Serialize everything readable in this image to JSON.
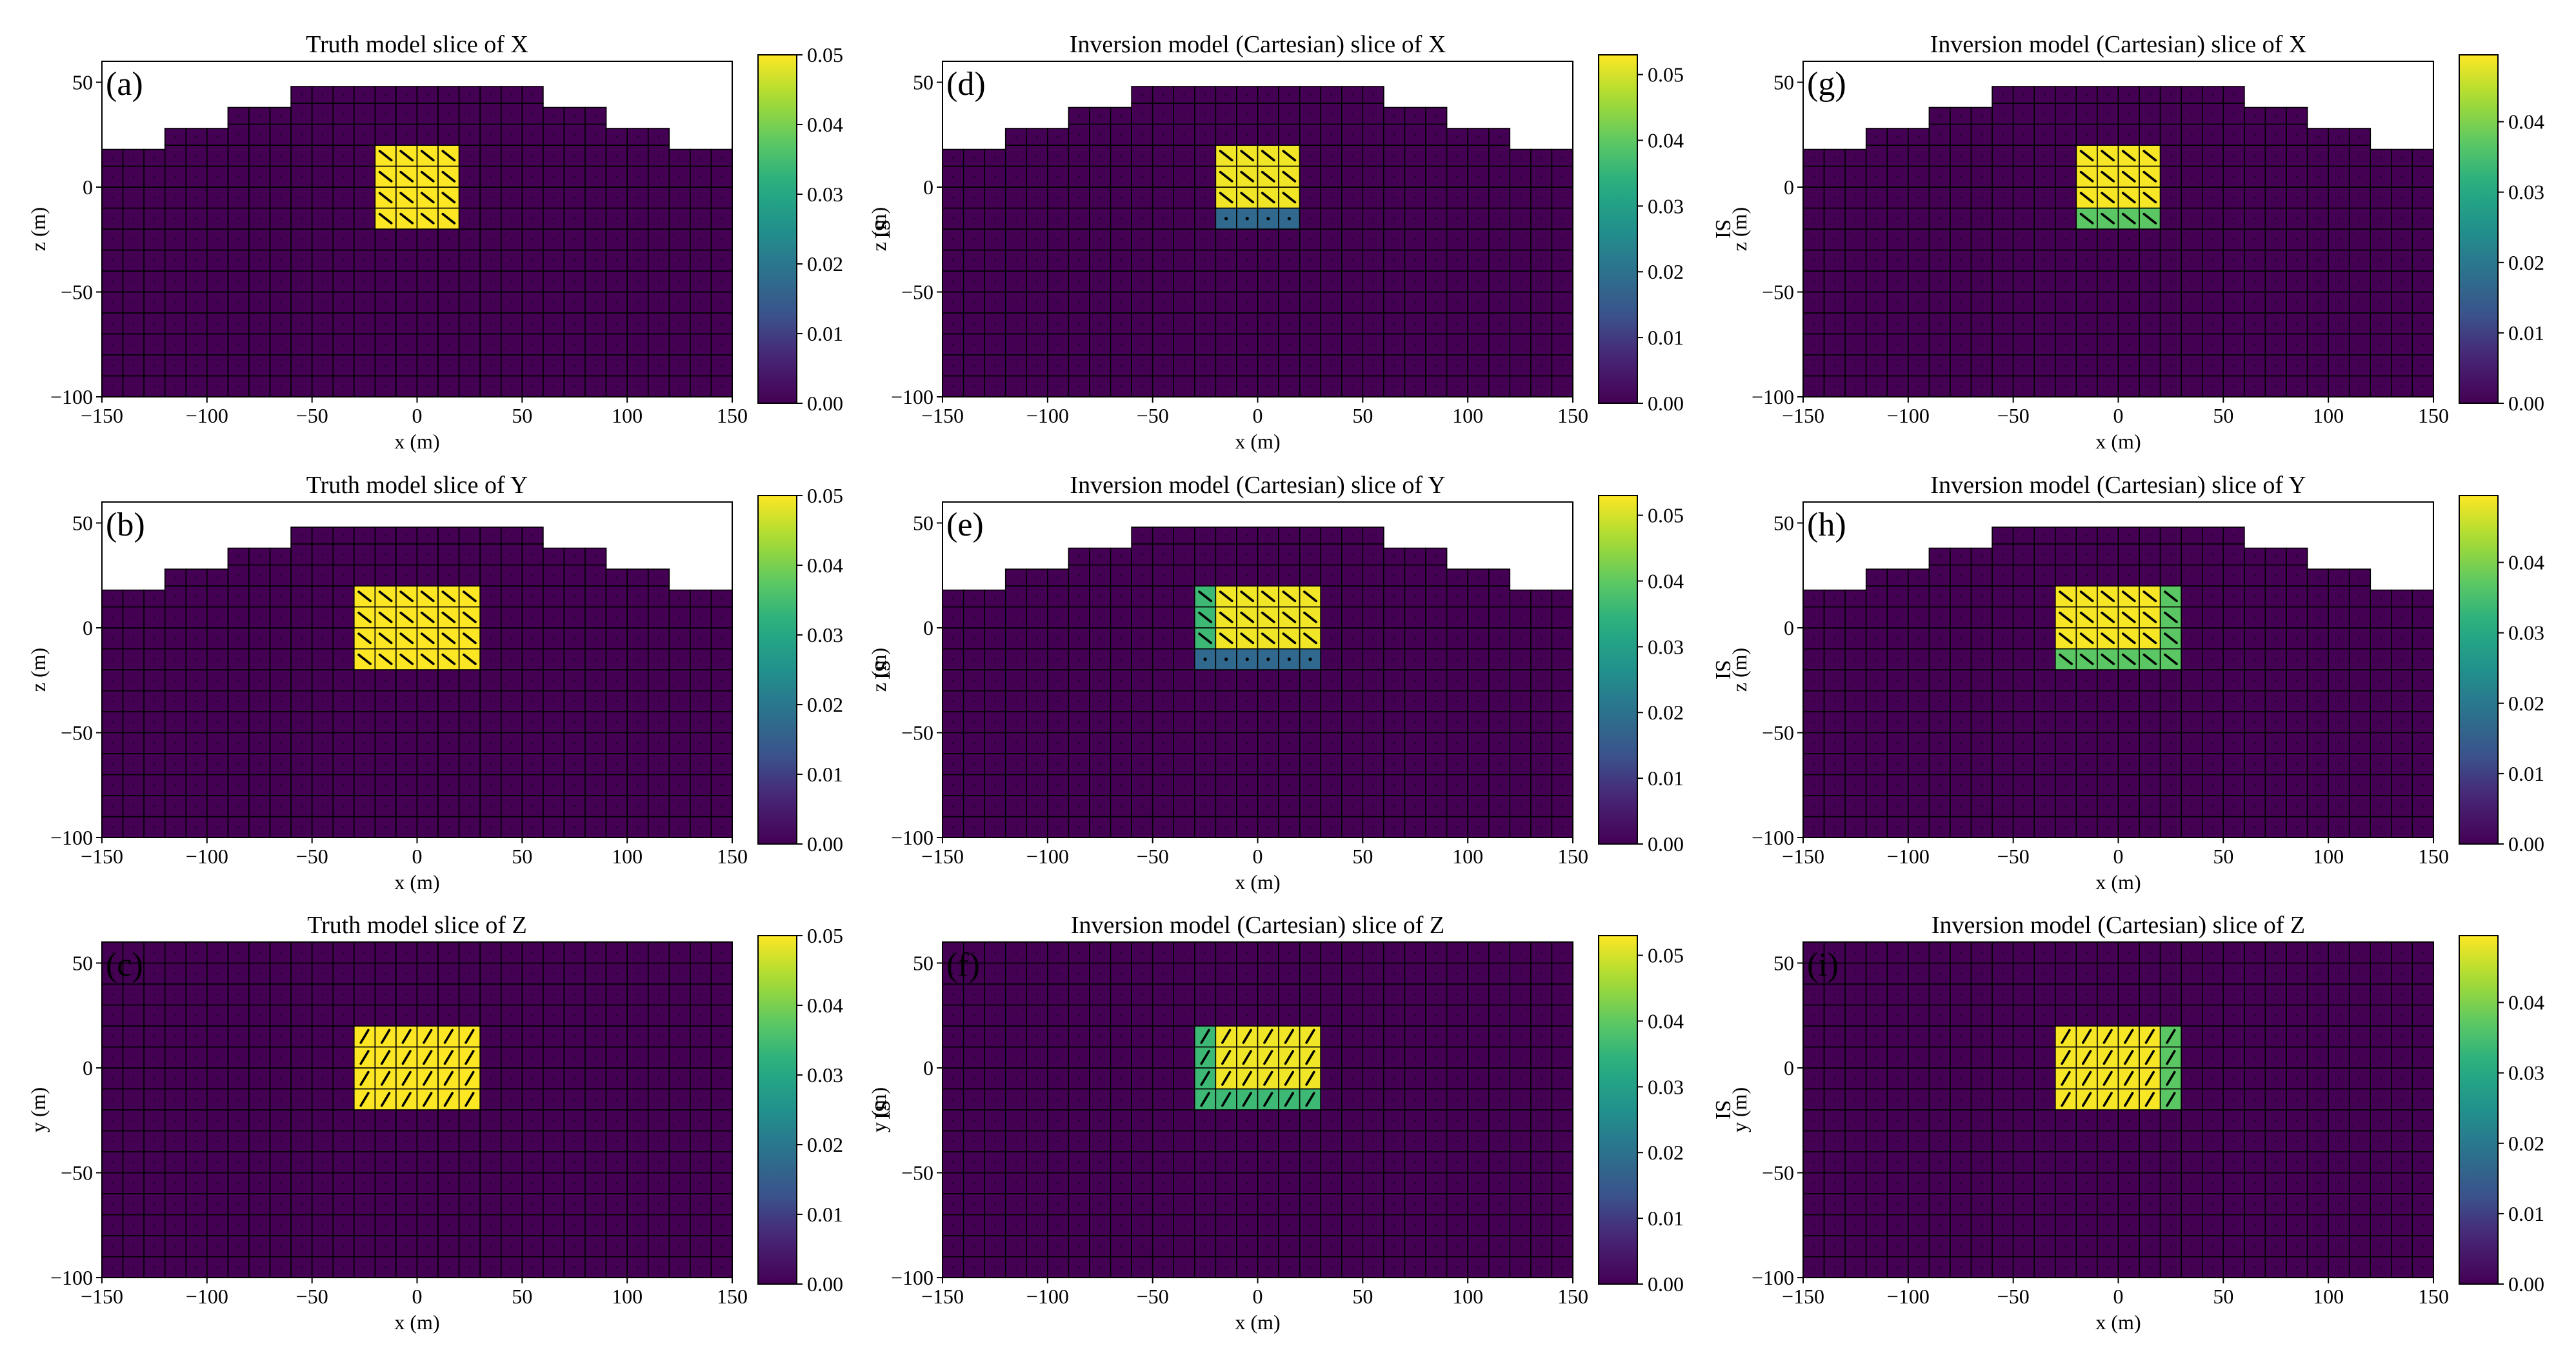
{
  "figure": {
    "xlabel": "x (m)",
    "cbar_label": "SI",
    "colors": {
      "low": "#440154",
      "mid_dark": "#31688e",
      "mid": "#21918c",
      "mid_green": "#35b779",
      "green": "#6ece58",
      "high": "#fde725",
      "grid": "#000000",
      "frame": "#000000"
    }
  },
  "chart_data": [
    {
      "id": "a",
      "label": "(a)",
      "type": "heatmap",
      "title": "Truth model slice of X",
      "xlabel": "x (m)",
      "ylabel": "z (m)",
      "xlim": [
        -150,
        150
      ],
      "ylim": [
        -100,
        60
      ],
      "xticks": [
        "−150",
        "−100",
        "−50",
        "0",
        "50",
        "100",
        "150"
      ],
      "xtick_values": [
        -150,
        -100,
        -50,
        0,
        50,
        100,
        150
      ],
      "yticks": [
        "−100",
        "−50",
        "0",
        "50"
      ],
      "ytick_values": [
        -100,
        -50,
        0,
        50
      ],
      "cbar_range": [
        0,
        0.05
      ],
      "cbar_ticks": [
        "0.00",
        "0.01",
        "0.02",
        "0.03",
        "0.04",
        "0.05"
      ],
      "cbar_tick_values": [
        0,
        0.01,
        0.02,
        0.03,
        0.04,
        0.05
      ],
      "topography": true,
      "background_value": 0.0,
      "anomaly": [
        {
          "x": [
            -20,
            20
          ],
          "y": [
            -20,
            20
          ],
          "value": 0.05,
          "arrow": "down-right"
        }
      ]
    },
    {
      "id": "b",
      "label": "(b)",
      "type": "heatmap",
      "title": "Truth model slice of Y",
      "xlabel": "x (m)",
      "ylabel": "z (m)",
      "xlim": [
        -150,
        150
      ],
      "ylim": [
        -100,
        60
      ],
      "xticks": [
        "−150",
        "−100",
        "−50",
        "0",
        "50",
        "100",
        "150"
      ],
      "xtick_values": [
        -150,
        -100,
        -50,
        0,
        50,
        100,
        150
      ],
      "yticks": [
        "−100",
        "−50",
        "0",
        "50"
      ],
      "ytick_values": [
        -100,
        -50,
        0,
        50
      ],
      "cbar_range": [
        0,
        0.05
      ],
      "cbar_ticks": [
        "0.00",
        "0.01",
        "0.02",
        "0.03",
        "0.04",
        "0.05"
      ],
      "cbar_tick_values": [
        0,
        0.01,
        0.02,
        0.03,
        0.04,
        0.05
      ],
      "topography": true,
      "background_value": 0.0,
      "anomaly": [
        {
          "x": [
            -30,
            30
          ],
          "y": [
            -20,
            20
          ],
          "value": 0.05,
          "arrow": "down-right"
        }
      ]
    },
    {
      "id": "c",
      "label": "(c)",
      "type": "heatmap",
      "title": "Truth model slice of Z",
      "xlabel": "x (m)",
      "ylabel": "y (m)",
      "xlim": [
        -150,
        150
      ],
      "ylim": [
        -100,
        60
      ],
      "xticks": [
        "−150",
        "−100",
        "−50",
        "0",
        "50",
        "100",
        "150"
      ],
      "xtick_values": [
        -150,
        -100,
        -50,
        0,
        50,
        100,
        150
      ],
      "yticks": [
        "−100",
        "−50",
        "0",
        "50"
      ],
      "ytick_values": [
        -100,
        -50,
        0,
        50
      ],
      "cbar_range": [
        0,
        0.05
      ],
      "cbar_ticks": [
        "0.00",
        "0.01",
        "0.02",
        "0.03",
        "0.04",
        "0.05"
      ],
      "cbar_tick_values": [
        0,
        0.01,
        0.02,
        0.03,
        0.04,
        0.05
      ],
      "topography": false,
      "background_value": 0.0,
      "anomaly": [
        {
          "x": [
            -30,
            30
          ],
          "y": [
            -20,
            20
          ],
          "value": 0.05,
          "arrow": "up-right"
        }
      ]
    },
    {
      "id": "d",
      "label": "(d)",
      "type": "heatmap",
      "title": "Inversion model (Cartesian) slice of X",
      "xlabel": "x (m)",
      "ylabel": "z (m)",
      "xlim": [
        -150,
        150
      ],
      "ylim": [
        -100,
        60
      ],
      "xticks": [
        "−150",
        "−100",
        "−50",
        "0",
        "50",
        "100",
        "150"
      ],
      "xtick_values": [
        -150,
        -100,
        -50,
        0,
        50,
        100,
        150
      ],
      "yticks": [
        "−100",
        "−50",
        "0",
        "50"
      ],
      "ytick_values": [
        -100,
        -50,
        0,
        50
      ],
      "cbar_range": [
        0,
        0.053
      ],
      "cbar_ticks": [
        "0.00",
        "0.01",
        "0.02",
        "0.03",
        "0.04",
        "0.05"
      ],
      "cbar_tick_values": [
        0,
        0.01,
        0.02,
        0.03,
        0.04,
        0.05
      ],
      "topography": true,
      "background_value": 0.0,
      "anomaly": [
        {
          "x": [
            -20,
            20
          ],
          "y": [
            -10,
            20
          ],
          "value": 0.052,
          "arrow": "down-right"
        },
        {
          "x": [
            -20,
            20
          ],
          "y": [
            -20,
            -10
          ],
          "value": 0.018,
          "arrow": "dot"
        }
      ]
    },
    {
      "id": "e",
      "label": "(e)",
      "type": "heatmap",
      "title": "Inversion model (Cartesian) slice of Y",
      "xlabel": "x (m)",
      "ylabel": "z (m)",
      "xlim": [
        -150,
        150
      ],
      "ylim": [
        -100,
        60
      ],
      "xticks": [
        "−150",
        "−100",
        "−50",
        "0",
        "50",
        "100",
        "150"
      ],
      "xtick_values": [
        -150,
        -100,
        -50,
        0,
        50,
        100,
        150
      ],
      "yticks": [
        "−100",
        "−50",
        "0",
        "50"
      ],
      "ytick_values": [
        -100,
        -50,
        0,
        50
      ],
      "cbar_range": [
        0,
        0.053
      ],
      "cbar_ticks": [
        "0.00",
        "0.01",
        "0.02",
        "0.03",
        "0.04",
        "0.05"
      ],
      "cbar_tick_values": [
        0,
        0.01,
        0.02,
        0.03,
        0.04,
        0.05
      ],
      "topography": true,
      "background_value": 0.0,
      "anomaly": [
        {
          "x": [
            -20,
            30
          ],
          "y": [
            -10,
            20
          ],
          "value": 0.052,
          "arrow": "down-right"
        },
        {
          "x": [
            -30,
            -20
          ],
          "y": [
            -10,
            20
          ],
          "value": 0.036,
          "arrow": "down-right"
        },
        {
          "x": [
            -30,
            30
          ],
          "y": [
            -20,
            -10
          ],
          "value": 0.018,
          "arrow": "dot"
        }
      ]
    },
    {
      "id": "f",
      "label": "(f)",
      "type": "heatmap",
      "title": "Inversion model (Cartesian) slice of Z",
      "xlabel": "x (m)",
      "ylabel": "y (m)",
      "xlim": [
        -150,
        150
      ],
      "ylim": [
        -100,
        60
      ],
      "xticks": [
        "−150",
        "−100",
        "−50",
        "0",
        "50",
        "100",
        "150"
      ],
      "xtick_values": [
        -150,
        -100,
        -50,
        0,
        50,
        100,
        150
      ],
      "yticks": [
        "−100",
        "−50",
        "0",
        "50"
      ],
      "ytick_values": [
        -100,
        -50,
        0,
        50
      ],
      "cbar_range": [
        0,
        0.053
      ],
      "cbar_ticks": [
        "0.00",
        "0.01",
        "0.02",
        "0.03",
        "0.04",
        "0.05"
      ],
      "cbar_tick_values": [
        0,
        0.01,
        0.02,
        0.03,
        0.04,
        0.05
      ],
      "topography": false,
      "background_value": 0.0,
      "anomaly": [
        {
          "x": [
            -20,
            30
          ],
          "y": [
            -10,
            20
          ],
          "value": 0.052,
          "arrow": "up-right"
        },
        {
          "x": [
            -30,
            -20
          ],
          "y": [
            -20,
            20
          ],
          "value": 0.036,
          "arrow": "up-right"
        },
        {
          "x": [
            -20,
            30
          ],
          "y": [
            -20,
            -10
          ],
          "value": 0.036,
          "arrow": "up-right"
        }
      ]
    },
    {
      "id": "g",
      "label": "(g)",
      "type": "heatmap",
      "title": "Inversion model (Cartesian) slice of X",
      "xlabel": "x (m)",
      "ylabel": "z (m)",
      "xlim": [
        -150,
        150
      ],
      "ylim": [
        -100,
        60
      ],
      "xticks": [
        "−150",
        "−100",
        "−50",
        "0",
        "50",
        "100",
        "150"
      ],
      "xtick_values": [
        -150,
        -100,
        -50,
        0,
        50,
        100,
        150
      ],
      "yticks": [
        "−100",
        "−50",
        "0",
        "50"
      ],
      "ytick_values": [
        -100,
        -50,
        0,
        50
      ],
      "cbar_range": [
        0,
        0.0495
      ],
      "cbar_ticks": [
        "0.00",
        "0.01",
        "0.02",
        "0.03",
        "0.04"
      ],
      "cbar_tick_values": [
        0,
        0.01,
        0.02,
        0.03,
        0.04
      ],
      "topography": true,
      "background_value": 0.0,
      "anomaly": [
        {
          "x": [
            -20,
            20
          ],
          "y": [
            -10,
            20
          ],
          "value": 0.049,
          "arrow": "down-right"
        },
        {
          "x": [
            -20,
            20
          ],
          "y": [
            -20,
            -10
          ],
          "value": 0.037,
          "arrow": "down-right"
        }
      ]
    },
    {
      "id": "h",
      "label": "(h)",
      "type": "heatmap",
      "title": "Inversion model (Cartesian) slice of Y",
      "xlabel": "x (m)",
      "ylabel": "z (m)",
      "xlim": [
        -150,
        150
      ],
      "ylim": [
        -100,
        60
      ],
      "xticks": [
        "−150",
        "−100",
        "−50",
        "0",
        "50",
        "100",
        "150"
      ],
      "xtick_values": [
        -150,
        -100,
        -50,
        0,
        50,
        100,
        150
      ],
      "yticks": [
        "−100",
        "−50",
        "0",
        "50"
      ],
      "ytick_values": [
        -100,
        -50,
        0,
        50
      ],
      "cbar_range": [
        0,
        0.0495
      ],
      "cbar_ticks": [
        "0.00",
        "0.01",
        "0.02",
        "0.03",
        "0.04"
      ],
      "cbar_tick_values": [
        0,
        0.01,
        0.02,
        0.03,
        0.04
      ],
      "topography": true,
      "background_value": 0.0,
      "anomaly": [
        {
          "x": [
            -30,
            20
          ],
          "y": [
            -10,
            20
          ],
          "value": 0.049,
          "arrow": "down-right"
        },
        {
          "x": [
            20,
            30
          ],
          "y": [
            -20,
            20
          ],
          "value": 0.037,
          "arrow": "down-right"
        },
        {
          "x": [
            -30,
            20
          ],
          "y": [
            -20,
            -10
          ],
          "value": 0.037,
          "arrow": "down-right"
        }
      ]
    },
    {
      "id": "i",
      "label": "(i)",
      "type": "heatmap",
      "title": "Inversion model (Cartesian) slice of Z",
      "xlabel": "x (m)",
      "ylabel": "y (m)",
      "xlim": [
        -150,
        150
      ],
      "ylim": [
        -100,
        60
      ],
      "xticks": [
        "−150",
        "−100",
        "−50",
        "0",
        "50",
        "100",
        "150"
      ],
      "xtick_values": [
        -150,
        -100,
        -50,
        0,
        50,
        100,
        150
      ],
      "yticks": [
        "−100",
        "−50",
        "0",
        "50"
      ],
      "ytick_values": [
        -100,
        -50,
        0,
        50
      ],
      "cbar_range": [
        0,
        0.0495
      ],
      "cbar_ticks": [
        "0.00",
        "0.01",
        "0.02",
        "0.03",
        "0.04"
      ],
      "cbar_tick_values": [
        0,
        0.01,
        0.02,
        0.03,
        0.04
      ],
      "topography": false,
      "background_value": 0.0,
      "anomaly": [
        {
          "x": [
            -30,
            20
          ],
          "y": [
            -20,
            20
          ],
          "value": 0.049,
          "arrow": "up-right"
        },
        {
          "x": [
            20,
            30
          ],
          "y": [
            -20,
            20
          ],
          "value": 0.037,
          "arrow": "up-right"
        }
      ]
    }
  ]
}
